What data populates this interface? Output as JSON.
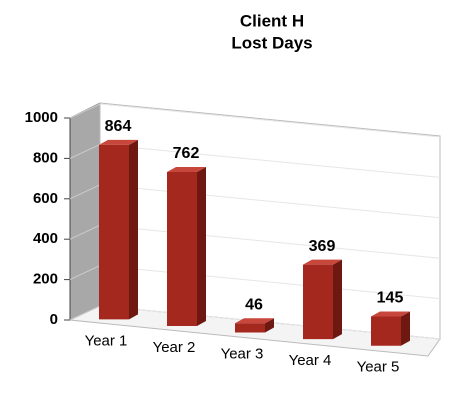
{
  "chart_data": {
    "type": "bar3d",
    "title": "Client H",
    "subtitle": "Lost Days",
    "categories": [
      "Year 1",
      "Year 2",
      "Year 3",
      "Year 4",
      "Year 5"
    ],
    "values": [
      864,
      762,
      46,
      369,
      145
    ],
    "color": "#a5281f",
    "ylim": [
      0,
      1000
    ],
    "yticks": [
      0,
      200,
      400,
      600,
      800,
      1000
    ],
    "grid": true
  }
}
